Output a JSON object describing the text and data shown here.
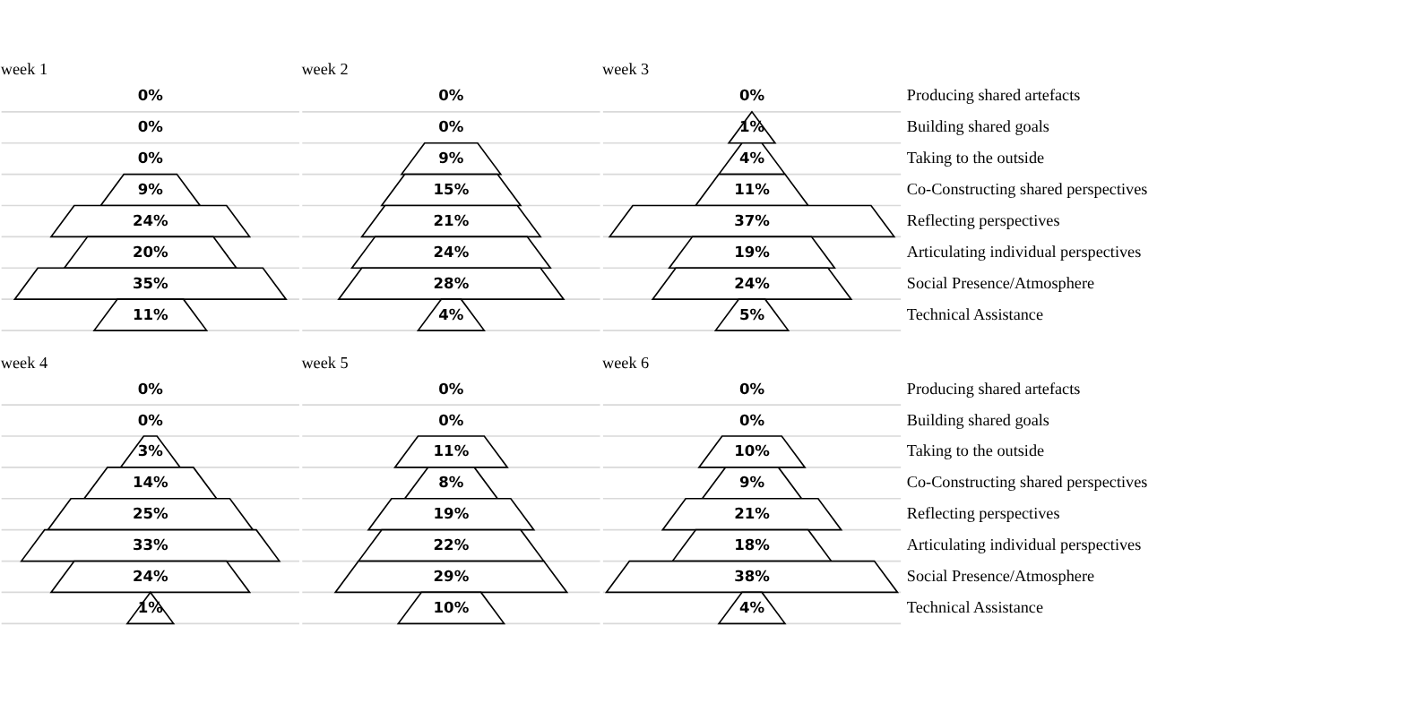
{
  "chart_data": [
    {
      "type": "other",
      "title": "week 1",
      "categories": [
        null,
        null,
        null,
        null,
        null,
        null,
        null,
        null
      ],
      "values": [
        0,
        0,
        0,
        9,
        24,
        20,
        35,
        11
      ],
      "value_labels": [
        "0%",
        "0%",
        "0%",
        "9%",
        "24%",
        "20%",
        "35%",
        "11%"
      ]
    },
    {
      "type": "other",
      "title": "week 2",
      "categories": [
        null,
        null,
        null,
        null,
        null,
        null,
        null,
        null
      ],
      "values": [
        0,
        0,
        9,
        15,
        21,
        24,
        28,
        4
      ],
      "value_labels": [
        "0%",
        "0%",
        "9%",
        "15%",
        "21%",
        "24%",
        "28%",
        "4%"
      ]
    },
    {
      "type": "other",
      "title": "week 3",
      "categories": [
        "Producing shared artefacts",
        "Building shared goals",
        "Taking to the outside",
        "Co-Constructing shared perspectives",
        "Reflecting perspectives",
        "Articulating individual perspectives",
        "Social Presence/Atmosphere",
        "Technical Assistance"
      ],
      "values": [
        0,
        1,
        4,
        11,
        37,
        19,
        24,
        5
      ],
      "value_labels": [
        "0%",
        "1%",
        "4%",
        "11%",
        "37%",
        "19%",
        "24%",
        "5%"
      ]
    },
    {
      "type": "other",
      "title": "week 4",
      "categories": [
        null,
        null,
        null,
        null,
        null,
        null,
        null,
        null
      ],
      "values": [
        0,
        0,
        3,
        14,
        25,
        33,
        24,
        1
      ],
      "value_labels": [
        "0%",
        "0%",
        "3%",
        "14%",
        "25%",
        "33%",
        "24%",
        "1%"
      ]
    },
    {
      "type": "other",
      "title": "week 5",
      "categories": [
        null,
        null,
        null,
        null,
        null,
        null,
        null,
        null
      ],
      "values": [
        0,
        0,
        11,
        8,
        19,
        22,
        29,
        10
      ],
      "value_labels": [
        "0%",
        "0%",
        "11%",
        "8%",
        "19%",
        "22%",
        "29%",
        "10%"
      ]
    },
    {
      "type": "other",
      "title": "week 6",
      "categories": [
        "Producing shared artefacts",
        "Building shared goals",
        "Taking to the outside",
        "Co-Constructing shared perspectives",
        "Reflecting perspectives",
        "Articulating individual perspectives",
        "Social Presence/Atmosphere",
        "Technical Assistance"
      ],
      "values": [
        0,
        0,
        10,
        9,
        21,
        18,
        38,
        4
      ],
      "value_labels": [
        "0%",
        "0%",
        "10%",
        "9%",
        "21%",
        "18%",
        "38%",
        "4%"
      ]
    }
  ]
}
